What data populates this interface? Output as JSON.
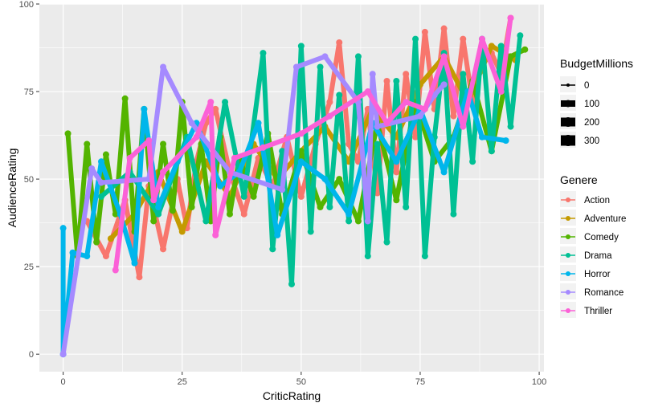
{
  "chart_data": {
    "type": "line",
    "xlabel": "CriticRating",
    "ylabel": "AudienceRating",
    "xlim": [
      -5,
      101
    ],
    "ylim": [
      -5,
      100
    ],
    "x_ticks": [
      0,
      25,
      50,
      75,
      100
    ],
    "y_ticks": [
      0,
      25,
      50,
      75,
      100
    ],
    "grid": true,
    "background": "#ebebeb",
    "legend_position": "right",
    "size_legend": {
      "title": "BudgetMillions",
      "entries": [
        "0",
        "100",
        "200",
        "300"
      ]
    },
    "color_legend": {
      "title": "Genere",
      "entries": [
        {
          "label": "Action",
          "color": "#f8766d"
        },
        {
          "label": "Adventure",
          "color": "#c49a00"
        },
        {
          "label": "Comedy",
          "color": "#53b400"
        },
        {
          "label": "Drama",
          "color": "#00c094"
        },
        {
          "label": "Horror",
          "color": "#00b6eb"
        },
        {
          "label": "Romance",
          "color": "#a58aff"
        },
        {
          "label": "Thriller",
          "color": "#fb61d7"
        }
      ]
    },
    "series": [
      {
        "name": "Action",
        "color": "#f8766d",
        "x": [
          5,
          9,
          13,
          16,
          18,
          21,
          24,
          26,
          28,
          30,
          32,
          35,
          38,
          41,
          44,
          47,
          50,
          53,
          56,
          58,
          60,
          62,
          64,
          66,
          68,
          70,
          72,
          74,
          76,
          78,
          80,
          82,
          84,
          86,
          88,
          90,
          92,
          94
        ],
        "y": [
          38,
          28,
          44,
          22,
          48,
          30,
          50,
          36,
          55,
          66,
          70,
          52,
          40,
          56,
          48,
          62,
          45,
          60,
          72,
          89,
          60,
          55,
          70,
          46,
          78,
          52,
          80,
          62,
          92,
          70,
          93,
          68,
          90,
          72,
          87,
          86,
          80,
          96
        ]
      },
      {
        "name": "Adventure",
        "color": "#c49a00",
        "x": [
          10,
          15,
          20,
          25,
          30,
          35,
          40,
          45,
          50,
          55,
          60,
          65,
          70,
          75,
          80,
          85,
          90,
          95
        ],
        "y": [
          33,
          40,
          52,
          35,
          55,
          45,
          60,
          50,
          58,
          65,
          55,
          70,
          62,
          77,
          85,
          72,
          88,
          84
        ]
      },
      {
        "name": "Comedy",
        "color": "#53b400",
        "x": [
          1,
          3,
          5,
          7,
          9,
          11,
          13,
          15,
          17,
          19,
          21,
          23,
          25,
          27,
          29,
          31,
          33,
          35,
          37,
          40,
          43,
          46,
          50,
          54,
          58,
          62,
          66,
          70,
          74,
          78,
          82,
          86,
          90,
          94,
          97
        ],
        "y": [
          63,
          28,
          60,
          32,
          57,
          40,
          73,
          35,
          70,
          38,
          60,
          41,
          72,
          42,
          60,
          38,
          62,
          40,
          56,
          45,
          63,
          40,
          58,
          42,
          50,
          38,
          66,
          44,
          72,
          55,
          62,
          78,
          58,
          85,
          87
        ]
      },
      {
        "name": "Drama",
        "color": "#00c094",
        "x": [
          8,
          14,
          20,
          26,
          30,
          34,
          38,
          42,
          44,
          46,
          48,
          50,
          52,
          54,
          56,
          58,
          60,
          62,
          64,
          66,
          68,
          70,
          72,
          74,
          76,
          78,
          80,
          82,
          84,
          86,
          88,
          90,
          92,
          94,
          96
        ],
        "y": [
          45,
          52,
          40,
          62,
          38,
          72,
          45,
          86,
          30,
          58,
          20,
          88,
          35,
          82,
          42,
          74,
          38,
          85,
          28,
          60,
          32,
          78,
          42,
          90,
          28,
          62,
          86,
          40,
          80,
          55,
          90,
          58,
          88,
          65,
          91
        ]
      },
      {
        "name": "Horror",
        "color": "#00b6eb",
        "x": [
          0,
          0,
          2,
          5,
          8,
          12,
          15,
          17,
          20,
          24,
          28,
          33,
          37,
          41,
          45,
          50,
          55,
          60,
          65,
          70,
          75,
          80,
          85,
          88,
          93
        ],
        "y": [
          36,
          0,
          29,
          28,
          55,
          40,
          26,
          70,
          42,
          55,
          66,
          48,
          52,
          66,
          34,
          55,
          50,
          40,
          66,
          55,
          70,
          52,
          75,
          62,
          61
        ]
      },
      {
        "name": "Romance",
        "color": "#a58aff",
        "x": [
          0,
          6,
          8,
          18,
          21,
          27,
          35,
          46,
          49,
          55,
          62,
          64,
          65,
          66,
          75,
          78,
          80
        ],
        "y": [
          0,
          53,
          49,
          50,
          82,
          66,
          52,
          47,
          82,
          85,
          72,
          38,
          80,
          65,
          68,
          74,
          77
        ]
      },
      {
        "name": "Thriller",
        "color": "#fb61d7",
        "x": [
          11,
          14,
          18,
          19,
          21,
          28,
          31,
          32,
          36,
          42,
          50,
          56,
          64,
          68,
          72,
          76,
          80,
          84,
          88,
          92,
          94
        ],
        "y": [
          24,
          56,
          61,
          44,
          52,
          62,
          72,
          34,
          56,
          59,
          63,
          68,
          75,
          66,
          72,
          70,
          85,
          65,
          90,
          75,
          96
        ]
      }
    ]
  }
}
